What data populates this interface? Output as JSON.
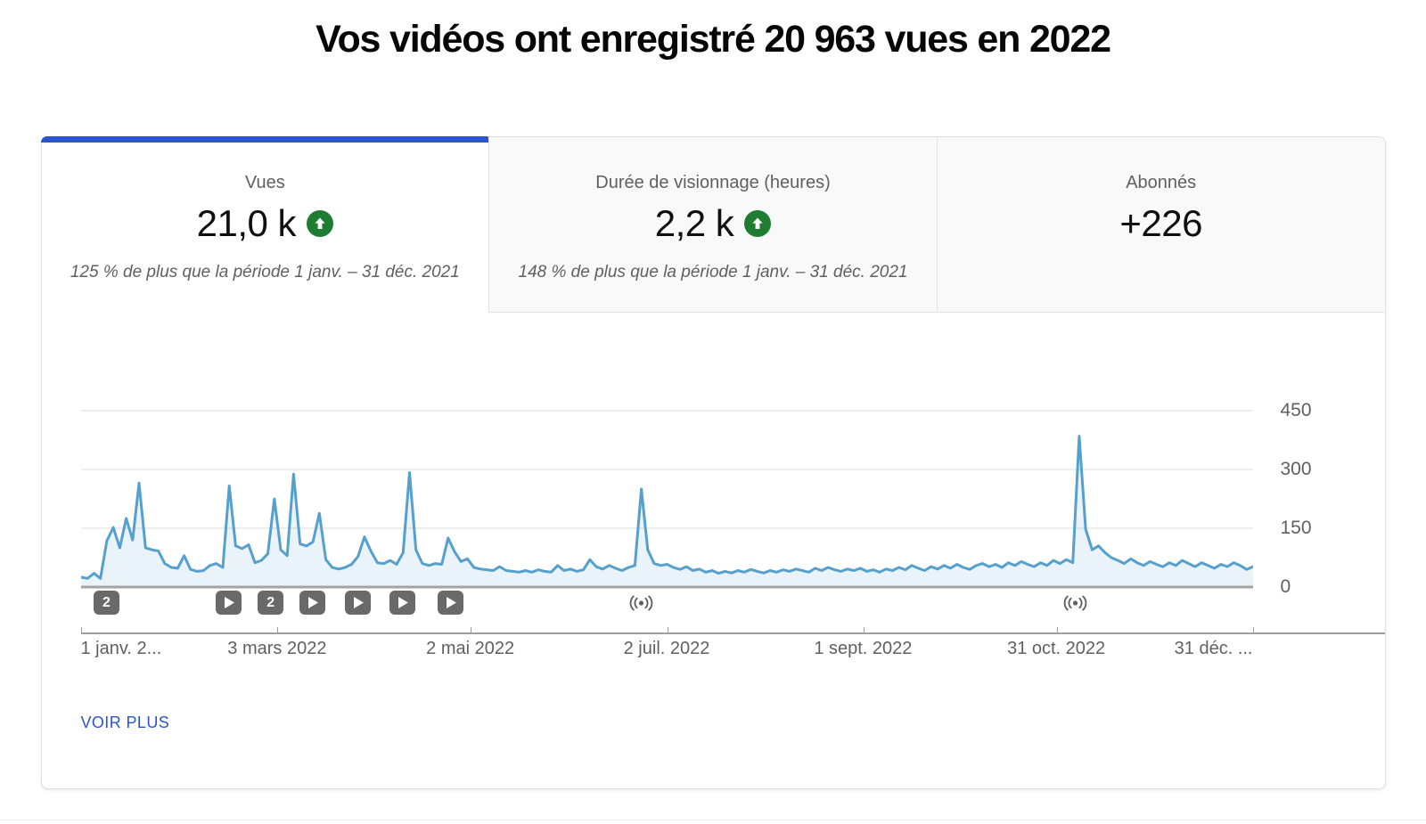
{
  "page": {
    "title": "Vos vidéos ont enregistré 20 963 vues en 2022"
  },
  "metrics": [
    {
      "id": "views",
      "label": "Vues",
      "value": "21,0 k",
      "trend": "up",
      "comparison": "125 % de plus que la période 1 janv. – 31 déc. 2021",
      "active": true
    },
    {
      "id": "watch-time",
      "label": "Durée de visionnage (heures)",
      "value": "2,2 k",
      "trend": "up",
      "comparison": "148 % de plus que la période 1 janv. – 31 déc. 2021",
      "active": false
    },
    {
      "id": "subscribers",
      "label": "Abonnés",
      "value": "+226",
      "trend": "none",
      "comparison": "",
      "active": false
    }
  ],
  "footer": {
    "see_more_label": "VOIR PLUS"
  },
  "colors": {
    "accent_blue": "#2b55cc",
    "trend_green": "#1f7d32",
    "line_blue": "#55a0cc",
    "area_fill": "rgba(85,160,205,0.13)",
    "gridline": "#e8e8e8",
    "baseline": "#a3a3a3",
    "axis_gray": "#9e9e9e",
    "text_gray": "#606060",
    "badge_gray": "#696969"
  },
  "chart_data": {
    "type": "area",
    "title": "Vues par jour en 2022",
    "xlabel": "",
    "ylabel": "Vues",
    "ylim": [
      0,
      450
    ],
    "yticks": [
      0,
      150,
      300,
      450
    ],
    "grid": true,
    "x_total_days": 364,
    "x_day_step": 2,
    "x_labels": [
      {
        "day": 0,
        "label": "1 janv. 2...",
        "align": "left"
      },
      {
        "day": 61,
        "label": "3 mars 2022",
        "align": "center"
      },
      {
        "day": 121,
        "label": "2 mai 2022",
        "align": "center"
      },
      {
        "day": 182,
        "label": "2 juil. 2022",
        "align": "center"
      },
      {
        "day": 243,
        "label": "1 sept. 2022",
        "align": "center"
      },
      {
        "day": 303,
        "label": "31 oct. 2022",
        "align": "center"
      },
      {
        "day": 364,
        "label": "31 déc. ...",
        "align": "right"
      }
    ],
    "series": [
      {
        "name": "Vues",
        "values": [
          25,
          22,
          35,
          22,
          118,
          152,
          100,
          175,
          120,
          265,
          100,
          95,
          92,
          60,
          50,
          48,
          80,
          45,
          40,
          42,
          55,
          60,
          50,
          258,
          105,
          98,
          108,
          62,
          68,
          85,
          225,
          95,
          80,
          288,
          110,
          105,
          115,
          188,
          70,
          50,
          46,
          50,
          58,
          78,
          128,
          92,
          62,
          60,
          68,
          58,
          88,
          292,
          95,
          60,
          55,
          60,
          58,
          125,
          90,
          65,
          72,
          50,
          46,
          44,
          42,
          52,
          42,
          40,
          38,
          42,
          38,
          44,
          40,
          38,
          55,
          42,
          46,
          40,
          44,
          70,
          52,
          46,
          55,
          48,
          42,
          50,
          55,
          250,
          95,
          60,
          55,
          58,
          50,
          45,
          52,
          42,
          46,
          38,
          42,
          35,
          40,
          36,
          42,
          38,
          45,
          40,
          36,
          42,
          38,
          44,
          40,
          46,
          42,
          38,
          48,
          42,
          50,
          44,
          40,
          46,
          42,
          48,
          40,
          44,
          38,
          46,
          42,
          50,
          44,
          55,
          48,
          42,
          52,
          46,
          55,
          48,
          58,
          50,
          45,
          55,
          60,
          52,
          58,
          50,
          62,
          55,
          65,
          58,
          52,
          62,
          55,
          68,
          60,
          70,
          62,
          385,
          148,
          95,
          105,
          88,
          75,
          68,
          60,
          72,
          62,
          55,
          65,
          58,
          52,
          62,
          55,
          68,
          60,
          52,
          62,
          55,
          48,
          58,
          52,
          62,
          55,
          45,
          52
        ]
      }
    ],
    "markers": [
      {
        "day": 8,
        "type": "videos",
        "label": "2"
      },
      {
        "day": 46,
        "type": "video"
      },
      {
        "day": 59,
        "type": "videos",
        "label": "2"
      },
      {
        "day": 72,
        "type": "video"
      },
      {
        "day": 86,
        "type": "video"
      },
      {
        "day": 100,
        "type": "video"
      },
      {
        "day": 115,
        "type": "video"
      },
      {
        "day": 174,
        "type": "live"
      },
      {
        "day": 309,
        "type": "live"
      }
    ]
  }
}
